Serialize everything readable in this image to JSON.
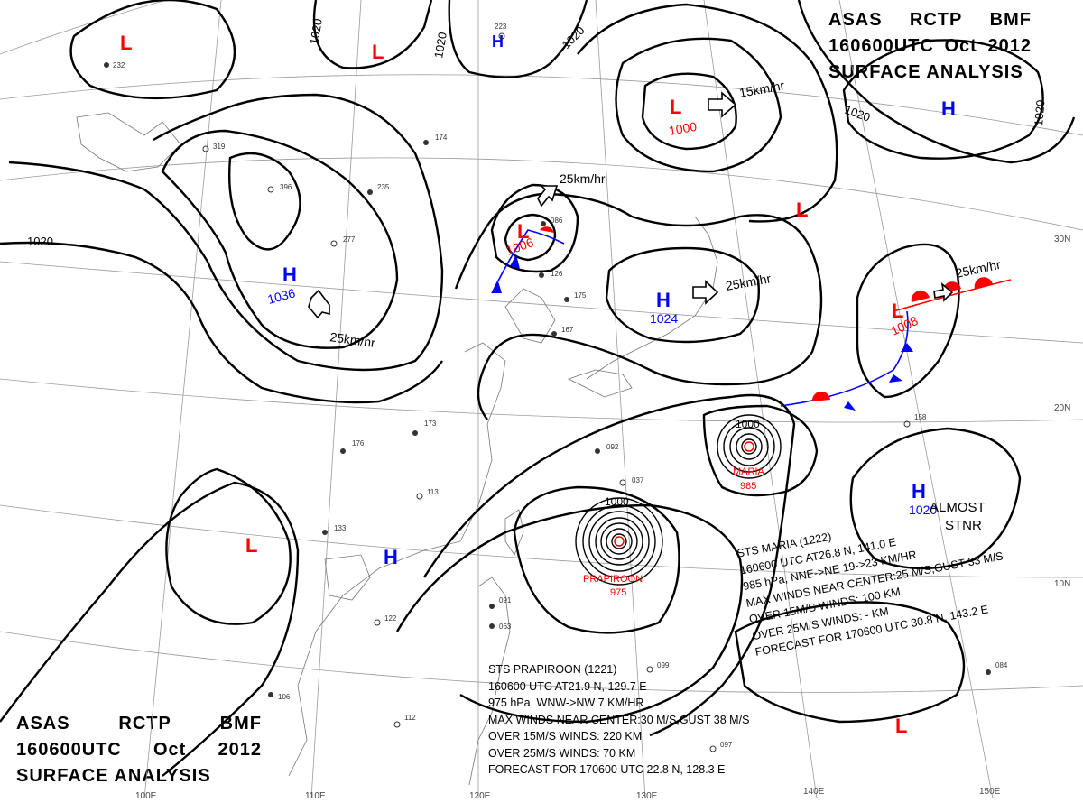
{
  "header": {
    "line1": [
      "ASAS",
      "RCTP",
      "BMF"
    ],
    "line2": [
      "160600UTC",
      "Oct",
      "2012"
    ],
    "line3": "SURFACE ANALYSIS"
  },
  "centers": {
    "high_1036": {
      "symbol": "H",
      "value": "1036",
      "motion": "25km/hr"
    },
    "high_1024": {
      "symbol": "H",
      "value": "1024",
      "motion": "25km/hr"
    },
    "high_1020": {
      "symbol": "H",
      "value": "1020",
      "note_1": "ALMOST",
      "note_2": "STNR"
    },
    "high_ne": {
      "symbol": "H"
    },
    "high_north": {
      "symbol": "H"
    },
    "high_south": {
      "symbol": "H"
    },
    "low_1000": {
      "symbol": "L",
      "value": "1000",
      "motion": "15km/hr"
    },
    "low_1006": {
      "symbol": "L",
      "value": "1006",
      "motion": "25km/hr"
    },
    "low_1008": {
      "symbol": "L",
      "value": "1008",
      "motion": "25km/hr"
    },
    "low_nw": {
      "symbol": "L"
    },
    "low_n": {
      "symbol": "L"
    },
    "low_e": {
      "symbol": "L"
    },
    "low_sw": {
      "symbol": "L"
    },
    "low_se": {
      "symbol": "L"
    }
  },
  "typhoons": {
    "maria": {
      "name": "MARIA",
      "pressure": "985",
      "ring_label": "1000"
    },
    "prapiroon": {
      "name": "PRAPIROON",
      "pressure": "975",
      "ring_label": "1000"
    }
  },
  "isobar_labels": [
    "1020",
    "1020",
    "1020",
    "1020",
    "1020",
    "1020"
  ],
  "grid_labels": {
    "lon": [
      "100E",
      "110E",
      "120E",
      "130E",
      "140E",
      "150E"
    ],
    "lat": [
      "30N",
      "20N",
      "10N"
    ]
  },
  "storm_maria_text": [
    "STS  MARIA  (1222)",
    "160600 UTC  AT26.8 N, 141.0 E",
    "985 hPa, NNE->NE  19->23 KM/HR",
    "MAX WINDS NEAR CENTER:25 M/S,GUST 33 M/S",
    "OVER 15M/S WINDS: 100 KM",
    "OVER 25M/S WINDS:  - KM",
    "FORECAST FOR 170600 UTC 30.8 N, 143.2 E"
  ],
  "storm_prapiroon_text": [
    "STS  PRAPIROON  (1221)",
    "160600 UTC  AT21.9 N, 129.7 E",
    "975 hPa, WNW->NW  7 KM/HR",
    "MAX WINDS NEAR CENTER:30 M/S,GUST 38 M/S",
    "OVER 15M/S WINDS: 220 KM",
    "OVER 25M/S WINDS: 70 KM",
    "FORECAST FOR 170600 UTC 22.8 N, 128.3 E"
  ],
  "station_labels": [
    "223",
    "232",
    "319",
    "396",
    "235",
    "277",
    "174",
    "086",
    "126",
    "175",
    "167",
    "173",
    "176",
    "113",
    "133",
    "037",
    "092",
    "158",
    "084",
    "099",
    "097",
    "106",
    "112",
    "122",
    "091",
    "063"
  ],
  "colors": {
    "high": "#0000ff",
    "low": "#ff0000",
    "isobar": "#000000",
    "grid": "#808080"
  }
}
